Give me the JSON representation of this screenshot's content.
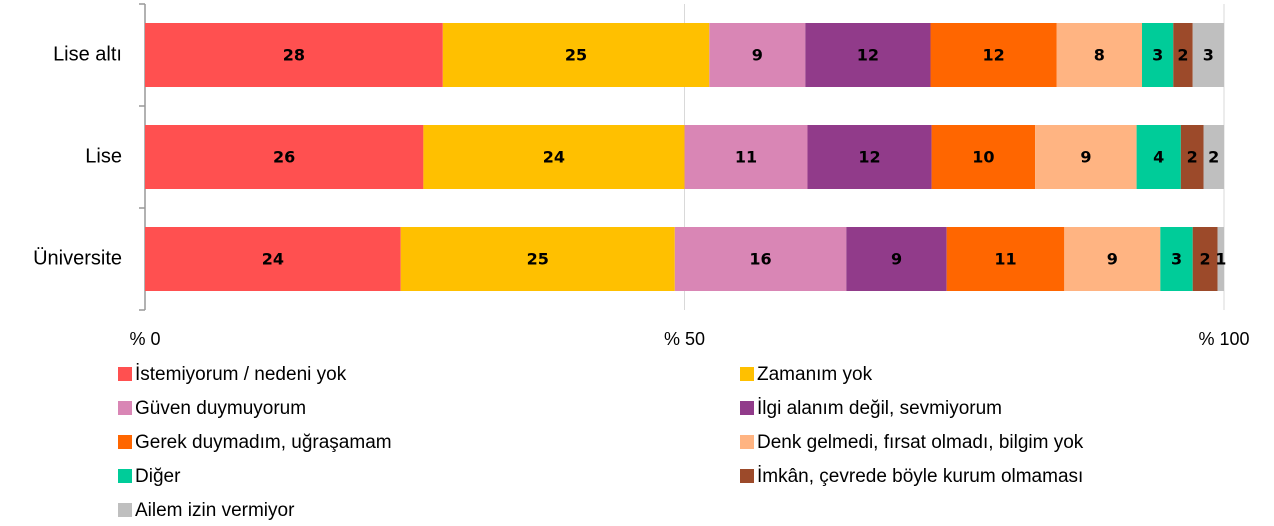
{
  "chart_data": {
    "type": "stacked-barh",
    "categories": [
      "Lise altı",
      "Lise",
      "Üniversite"
    ],
    "series": [
      {
        "name": "İstemiyorum / nedeni yok",
        "color": "#ff5050",
        "values": [
          27.6,
          25.8,
          23.7
        ],
        "value_labels": [
          "28",
          "26",
          "24"
        ]
      },
      {
        "name": "Zamanım yok",
        "color": "#ffc000",
        "values": [
          24.7,
          24.2,
          25.4
        ],
        "value_labels": [
          "25",
          "24",
          "25"
        ]
      },
      {
        "name": "Güven duymuyorum",
        "color": "#d986b5",
        "values": [
          8.9,
          11.4,
          15.9
        ],
        "value_labels": [
          "9",
          "11",
          "16"
        ]
      },
      {
        "name": "İlgi alanım değil, sevmiyorum",
        "color": "#913b8a",
        "values": [
          11.6,
          11.5,
          9.3
        ],
        "value_labels": [
          "12",
          "12",
          "9"
        ]
      },
      {
        "name": "Gerek duymadım, uğraşamam",
        "color": "#ff6600",
        "values": [
          11.7,
          9.6,
          10.9
        ],
        "value_labels": [
          "12",
          "10",
          "11"
        ]
      },
      {
        "name": "Denk gelmedi, fırsat olmadı, bilgim yok",
        "color": "#ffb482",
        "values": [
          7.9,
          9.4,
          8.9
        ],
        "value_labels": [
          "8",
          "9",
          "9"
        ]
      },
      {
        "name": "Diğer",
        "color": "#00cc99",
        "values": [
          2.9,
          4.1,
          3.0
        ],
        "value_labels": [
          "3",
          "4",
          "3"
        ]
      },
      {
        "name": "İmkân, çevrede böyle kurum olmaması",
        "color": "#9c4a2a",
        "values": [
          1.8,
          2.1,
          2.3
        ],
        "value_labels": [
          "2",
          "2",
          "2"
        ]
      },
      {
        "name": "Ailem izin vermiyor",
        "color": "#bfbfbf",
        "values": [
          2.9,
          1.9,
          0.6
        ],
        "value_labels": [
          "3",
          "2",
          "1"
        ]
      }
    ],
    "xlim": [
      0,
      100
    ],
    "xticks": [
      {
        "value": 0,
        "label": "% 0"
      },
      {
        "value": 50,
        "label": "% 50"
      },
      {
        "value": 100,
        "label": "% 100"
      }
    ],
    "grid": true
  }
}
